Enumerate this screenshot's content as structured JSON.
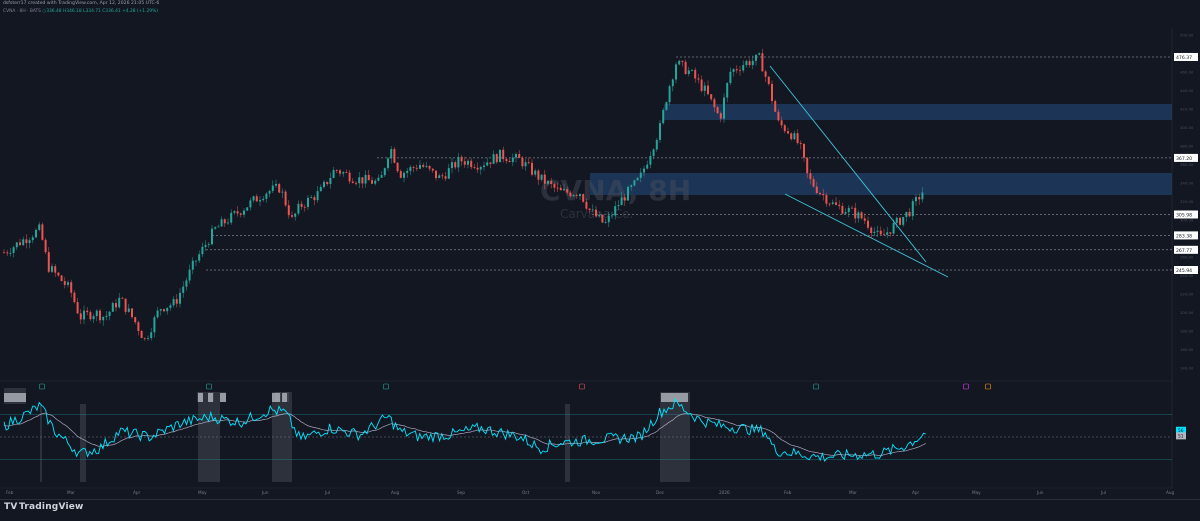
{
  "header": {
    "credit": "dsfsterr17 created with TradingView.com, Apr 12, 2026 21:05 UTC-6"
  },
  "legend": {
    "prefix": "CVNA · 8H · BATS",
    "values": "○336.48  H346.18  L334.71  C336.41  +4.28  (+1.29%)"
  },
  "watermark": {
    "symbol": "CVNA, 8H",
    "name": "Carvana Co."
  },
  "price_tags": [
    {
      "label": "476.37",
      "price": 476.37
    },
    {
      "label": "367.20",
      "price": 367.2
    },
    {
      "label": "305.98",
      "price": 305.98
    },
    {
      "label": "283.38",
      "price": 283.38
    },
    {
      "label": "267.77",
      "price": 267.77
    },
    {
      "label": "245.94",
      "price": 245.94
    }
  ],
  "rsi_tags": [
    {
      "label": "56",
      "value": 56
    },
    {
      "label": "51",
      "value": 51
    }
  ],
  "month_labels": [
    "Feb",
    "Mar",
    "Apr",
    "May",
    "Jun",
    "Jul",
    "Aug",
    "Sep",
    "Oct",
    "Nov",
    "Dec",
    "2026",
    "Feb",
    "Mar",
    "Apr",
    "May",
    "Jun",
    "Jul",
    "Aug"
  ],
  "footer": {
    "brand": "TradingView"
  },
  "colors": {
    "background": "#131722",
    "up_candle": "#26a69a",
    "down_candle": "#ef5350",
    "zone": "#1e3a5f",
    "trendline": "#3ec6d8",
    "rsi_line": "#00e5ff",
    "rsi_ma": "#e040fb"
  }
}
